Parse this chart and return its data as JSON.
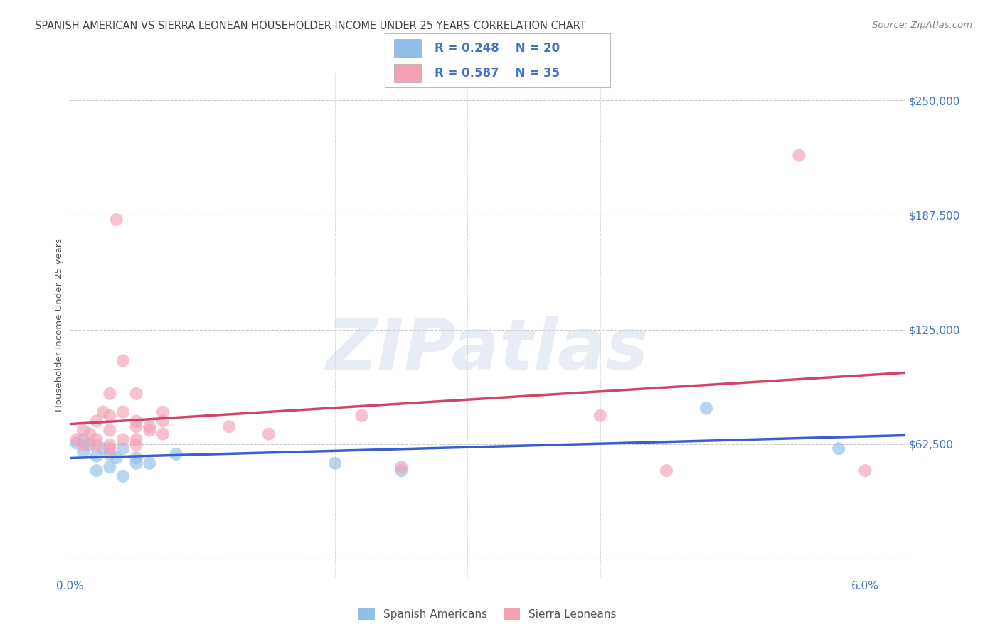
{
  "title": "SPANISH AMERICAN VS SIERRA LEONEAN HOUSEHOLDER INCOME UNDER 25 YEARS CORRELATION CHART",
  "source": "Source: ZipAtlas.com",
  "ylabel": "Householder Income Under 25 years",
  "xlim": [
    0.0,
    0.063
  ],
  "ylim": [
    -10000,
    265000
  ],
  "yticks": [
    0,
    62500,
    125000,
    187500,
    250000
  ],
  "ytick_labels": [
    "",
    "$62,500",
    "$125,000",
    "$187,500",
    "$250,000"
  ],
  "xticks": [
    0.0,
    0.01,
    0.02,
    0.03,
    0.04,
    0.05,
    0.06
  ],
  "xtick_labels": [
    "0.0%",
    "",
    "",
    "",
    "",
    "",
    "6.0%"
  ],
  "background_color": "#ffffff",
  "grid_color": "#cccccc",
  "watermark_text": "ZIPatlas",
  "blue_dot_color": "#92bfe8",
  "pink_dot_color": "#f5a0b5",
  "blue_line_color": "#3a5fcd",
  "pink_line_color": "#d04565",
  "legend_text_color": "#4472c4",
  "axis_tick_color": "#4472c4",
  "title_color": "#444444",
  "source_color": "#888888",
  "ylabel_color": "#555555",
  "title_fontsize": 10.5,
  "source_fontsize": 9.5,
  "ylabel_fontsize": 9.5,
  "tick_fontsize": 11,
  "legend_fontsize": 12,
  "r_blue": "0.248",
  "n_blue": "20",
  "r_pink": "0.587",
  "n_pink": "35",
  "spanish_x": [
    0.0005,
    0.001,
    0.001,
    0.0015,
    0.002,
    0.002,
    0.0025,
    0.003,
    0.003,
    0.0035,
    0.004,
    0.004,
    0.005,
    0.005,
    0.006,
    0.008,
    0.02,
    0.025,
    0.048,
    0.058
  ],
  "spanish_y": [
    63000,
    65000,
    58000,
    62000,
    56000,
    48000,
    60000,
    57000,
    50000,
    55000,
    60000,
    45000,
    52000,
    55000,
    52000,
    57000,
    52000,
    48000,
    82000,
    60000
  ],
  "sierra_x": [
    0.0005,
    0.001,
    0.001,
    0.0015,
    0.002,
    0.002,
    0.002,
    0.0025,
    0.003,
    0.003,
    0.003,
    0.003,
    0.003,
    0.0035,
    0.004,
    0.004,
    0.004,
    0.005,
    0.005,
    0.005,
    0.005,
    0.005,
    0.006,
    0.006,
    0.007,
    0.007,
    0.007,
    0.012,
    0.015,
    0.022,
    0.025,
    0.04,
    0.045,
    0.055,
    0.06
  ],
  "sierra_y": [
    65000,
    62000,
    70000,
    68000,
    65000,
    62000,
    75000,
    80000,
    90000,
    70000,
    60000,
    62000,
    78000,
    185000,
    80000,
    65000,
    108000,
    72000,
    65000,
    62000,
    90000,
    75000,
    70000,
    72000,
    68000,
    75000,
    80000,
    72000,
    68000,
    78000,
    50000,
    78000,
    48000,
    220000,
    48000
  ]
}
